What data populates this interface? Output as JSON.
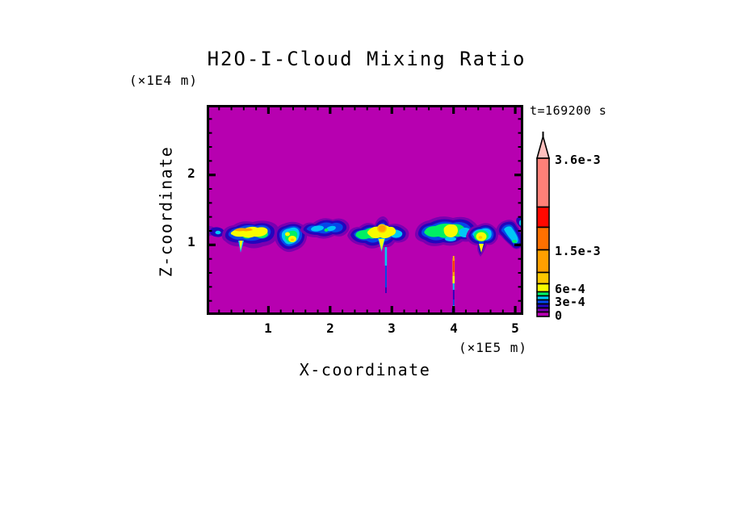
{
  "chart": {
    "title": "H2O-I-Cloud Mixing Ratio",
    "time_label": "t=169200 s"
  },
  "axes": {
    "x": {
      "label": "X-coordinate",
      "units": "(×1E5 m)",
      "range": [
        0,
        5.13
      ],
      "minor_step": 0.2,
      "ticks": [
        {
          "value": 1,
          "label": "1"
        },
        {
          "value": 2,
          "label": "2"
        },
        {
          "value": 3,
          "label": "3"
        },
        {
          "value": 4,
          "label": "4"
        },
        {
          "value": 5,
          "label": "5"
        }
      ]
    },
    "z": {
      "label": "Z-coordinate",
      "units": "(×1E4 m)",
      "range": [
        0,
        3
      ],
      "minor_step": 0.2,
      "ticks": [
        {
          "value": 1,
          "label": "1"
        },
        {
          "value": 2,
          "label": "2"
        }
      ]
    }
  },
  "colorbar": {
    "labels": [
      {
        "text": "3.6e-3",
        "value": 0.0036
      },
      {
        "text": "1.5e-3",
        "value": 0.0015
      },
      {
        "text": "6e-4",
        "value": 0.0006
      },
      {
        "text": "3e-4",
        "value": 0.0003
      },
      {
        "text": "0",
        "value": 0
      }
    ],
    "segment_colors_low_to_high": [
      "magenta",
      "purple",
      "navy",
      "blue",
      "cyan",
      "green",
      "yellow",
      "gold",
      "orange",
      "dark_orange",
      "red",
      "salmon",
      "pink"
    ]
  },
  "palette": {
    "magenta": "#B700B0",
    "purple": "#7A00B0",
    "navy": "#2404BC",
    "blue": "#0548E8",
    "cyan": "#00C8F5",
    "green": "#00F064",
    "yellow": "#F8FC00",
    "gold": "#FFC800",
    "orange": "#FFA000",
    "dark_orange": "#FF7000",
    "red": "#FF0800",
    "salmon": "#FF8078",
    "pink": "#FFC0BE",
    "frame": "#000000"
  },
  "chart_data": {
    "type": "heatmap",
    "title": "H2O-I-Cloud Mixing Ratio",
    "xlabel": "X-coordinate",
    "ylabel": "Z-coordinate",
    "x_axis_multiplier": "(×1E5 m)",
    "z_axis_multiplier": "(×1E4 m)",
    "time_annotation": "t=169200 s",
    "x_range": [
      0,
      5.13
    ],
    "z_range": [
      0,
      3.0
    ],
    "x_ticks": [
      1,
      2,
      3,
      4,
      5
    ],
    "z_ticks": [
      1,
      2
    ],
    "grid": false,
    "legend_position": "right colorbar with overflow arrow",
    "colorbar_tick_labels": [
      "0",
      "3e-4",
      "6e-4",
      "1.5e-3",
      "3.6e-3"
    ],
    "colorbar_levels_estimated": [
      0,
      0.0001,
      0.0002,
      0.0003,
      0.0004,
      0.0005,
      0.0006,
      0.0008,
      0.00105,
      0.0015,
      0.002,
      0.00255,
      0.0036
    ],
    "background_value": 0,
    "features": [
      {
        "type": "cloud-band",
        "z_extent": [
          1.0,
          1.4
        ],
        "note": "broken layer of ice cloud across full domain"
      },
      {
        "type": "cloud",
        "x_extent": [
          0.05,
          0.25
        ],
        "z_extent": [
          1.1,
          1.25
        ],
        "peak": "~4e-4 (cyan dot in blue blob)"
      },
      {
        "type": "cloud",
        "x_extent": [
          0.3,
          1.1
        ],
        "z_extent": [
          0.95,
          1.3
        ],
        "peak": "~1e-3 (orange streak in yellow body)"
      },
      {
        "type": "cloud",
        "x_extent": [
          1.1,
          1.55
        ],
        "z_extent": [
          0.9,
          1.3
        ],
        "peak": "~7e-4 (yellow-green core)"
      },
      {
        "type": "cloud",
        "x_extent": [
          1.6,
          2.3
        ],
        "z_extent": [
          1.05,
          1.45
        ],
        "peak": "~4e-4 (cyan patches in dark blue streak)"
      },
      {
        "type": "cloud",
        "x_extent": [
          2.3,
          3.2
        ],
        "z_extent": [
          0.95,
          1.4
        ],
        "peak": "~1.2e-3 (orange spot, pointed top)"
      },
      {
        "type": "precipitation-streak",
        "x": 2.9,
        "z_extent": [
          0.35,
          1.0
        ],
        "peak": "~4e-4 (cyan/blue fall streak)"
      },
      {
        "type": "cloud",
        "x_extent": [
          3.35,
          4.3
        ],
        "z_extent": [
          1.0,
          1.4
        ],
        "peak": "~7e-4 (yellow core in green cloud)"
      },
      {
        "type": "cloud",
        "x_extent": [
          4.25,
          4.8
        ],
        "z_extent": [
          0.85,
          1.3
        ],
        "peak": "~8e-4 (yellow core, pointed base)"
      },
      {
        "type": "cloud",
        "x_extent": [
          4.7,
          5.13
        ],
        "z_extent": [
          1.0,
          1.45
        ],
        "peak": "~4e-4 (slanted cyan band)"
      },
      {
        "type": "precipitation-streak",
        "x": 4.0,
        "z_extent": [
          0.05,
          0.85
        ],
        "peak": "~2e-3 (red/orange top, blue below)"
      }
    ]
  }
}
